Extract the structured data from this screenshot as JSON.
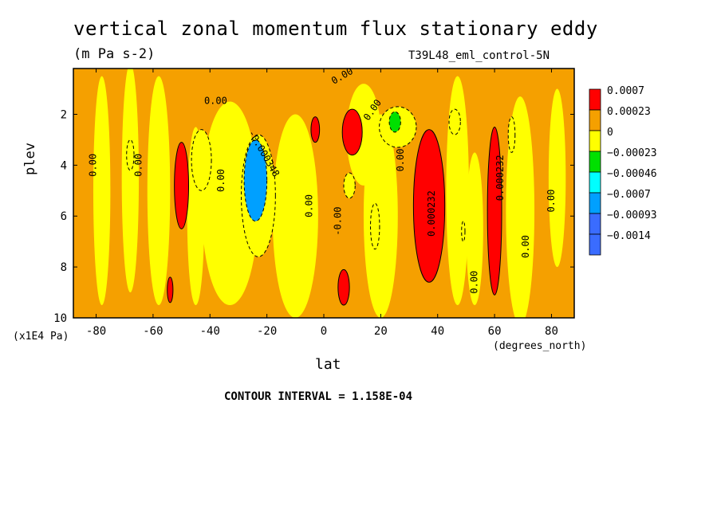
{
  "chart_data": {
    "type": "heatmap",
    "title": "vertical zonal momentum flux stationary eddy",
    "units": "(m Pa s-2)",
    "dataset_label": "T39L48_eml_control-5N",
    "xlabel": "lat",
    "x_units": "(degrees_north)",
    "ylabel": "plev",
    "y_units": "(x1E4 Pa)",
    "x_ticks": [
      "-80",
      "-60",
      "-40",
      "-20",
      "0",
      "20",
      "40",
      "60",
      "80"
    ],
    "y_ticks": [
      "2",
      "4",
      "6",
      "8",
      "10"
    ],
    "xlim": [
      -88,
      88
    ],
    "ylim": [
      0.2,
      10
    ],
    "y_inverted": true,
    "legend": {
      "position": "right",
      "levels": [
        {
          "label": "0.0007",
          "color": "#ff0000"
        },
        {
          "label": "0.00023",
          "color": "#f5a000"
        },
        {
          "label": "0",
          "color": "#ffff00"
        },
        {
          "label": "−0.00023",
          "color": "#00e000"
        },
        {
          "label": "−0.00046",
          "color": "#00ffff"
        },
        {
          "label": "−0.0007",
          "color": "#00a0ff"
        },
        {
          "label": "−0.00093",
          "color": "#3a6cff"
        },
        {
          "label": "−0.0014",
          "color": "#3a6cff"
        }
      ]
    },
    "contour_labels": [
      {
        "text": "0.00",
        "lat": -80,
        "plev": 4.0,
        "rotate": -90
      },
      {
        "text": "0.00",
        "lat": -64,
        "plev": 4.0,
        "rotate": -90
      },
      {
        "text": "0.00",
        "lat": -35,
        "plev": 4.6,
        "rotate": -90
      },
      {
        "text": "0.00",
        "lat": -38,
        "plev": 1.6,
        "rotate": 0
      },
      {
        "text": "-0.000348",
        "lat": -22,
        "plev": 3.6,
        "rotate": 60
      },
      {
        "text": "0.00",
        "lat": -4,
        "plev": 5.6,
        "rotate": -90
      },
      {
        "text": "0.00",
        "lat": 7,
        "plev": 0.6,
        "rotate": -30
      },
      {
        "text": "-0.00",
        "lat": 6,
        "plev": 6.2,
        "rotate": -90
      },
      {
        "text": "0.00",
        "lat": 18,
        "plev": 1.9,
        "rotate": -55
      },
      {
        "text": "0.00",
        "lat": 28,
        "plev": 3.8,
        "rotate": -90
      },
      {
        "text": "0.000232",
        "lat": 39,
        "plev": 5.9,
        "rotate": -90
      },
      {
        "text": "0.00",
        "lat": 54,
        "plev": 8.6,
        "rotate": -90
      },
      {
        "text": "0.000232",
        "lat": 63,
        "plev": 4.5,
        "rotate": -90
      },
      {
        "text": "0.00",
        "lat": 72,
        "plev": 7.2,
        "rotate": -90
      },
      {
        "text": "0.00",
        "lat": 81,
        "plev": 5.4,
        "rotate": -90
      }
    ],
    "regions": [
      {
        "level": 0,
        "lat": -50,
        "plev": 4.8,
        "rx": 2.5,
        "ry": 1.7
      },
      {
        "level": 0,
        "lat": -54,
        "plev": 8.9,
        "rx": 1.0,
        "ry": 0.5
      },
      {
        "level": 0,
        "lat": -3,
        "plev": 2.6,
        "rx": 1.5,
        "ry": 0.5
      },
      {
        "level": 0,
        "lat": 10,
        "plev": 2.7,
        "rx": 3.5,
        "ry": 0.9
      },
      {
        "level": 0,
        "lat": 7,
        "plev": 8.8,
        "rx": 2.0,
        "ry": 0.7
      },
      {
        "level": 0,
        "lat": 37,
        "plev": 5.6,
        "rx": 5.5,
        "ry": 3.0
      },
      {
        "level": 0,
        "lat": 60,
        "plev": 5.8,
        "rx": 2.5,
        "ry": 3.3
      },
      {
        "level": 2,
        "lat": -68,
        "plev": 3.6,
        "rx": 1.3,
        "ry": 0.6
      },
      {
        "level": 2,
        "lat": -43,
        "plev": 3.8,
        "rx": 3.5,
        "ry": 1.2
      },
      {
        "level": 2,
        "lat": -23,
        "plev": 5.2,
        "rx": 6.0,
        "ry": 2.4
      },
      {
        "level": 2,
        "lat": 26,
        "plev": 2.5,
        "rx": 6.5,
        "ry": 0.8
      },
      {
        "level": 2,
        "lat": 18,
        "plev": 6.4,
        "rx": 1.6,
        "ry": 0.9
      },
      {
        "level": 2,
        "lat": 9,
        "plev": 4.8,
        "rx": 2.0,
        "ry": 0.5
      },
      {
        "level": 2,
        "lat": 46,
        "plev": 2.3,
        "rx": 2.0,
        "ry": 0.5
      },
      {
        "level": 2,
        "lat": 66,
        "plev": 2.8,
        "rx": 1.2,
        "ry": 0.7
      },
      {
        "level": 2,
        "lat": 49,
        "plev": 6.6,
        "rx": 0.6,
        "ry": 0.4
      },
      {
        "level": 3,
        "lat": 25,
        "plev": 2.3,
        "rx": 2.0,
        "ry": 0.4
      },
      {
        "level": 5,
        "lat": -24,
        "plev": 4.6,
        "rx": 4.0,
        "ry": 1.6
      }
    ]
  },
  "annotations": {
    "contour_interval": "CONTOUR INTERVAL = 1.158E-04"
  }
}
